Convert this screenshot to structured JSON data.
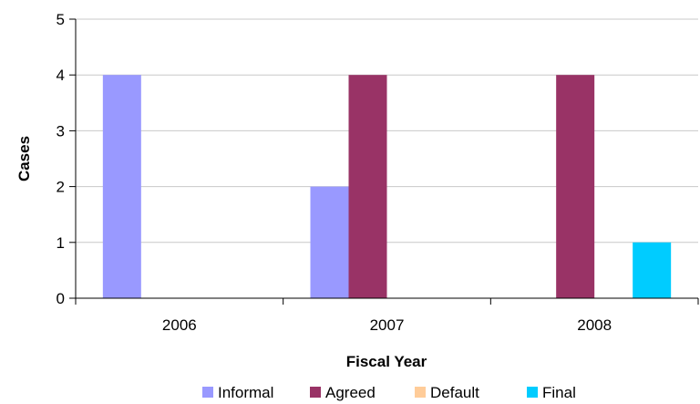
{
  "chart_data": {
    "type": "bar",
    "title": "",
    "xlabel": "Fiscal Year",
    "ylabel": "Cases",
    "categories": [
      "2006",
      "2007",
      "2008"
    ],
    "series": [
      {
        "name": "Informal",
        "color": "#9999ff",
        "values": [
          4,
          2,
          0
        ]
      },
      {
        "name": "Agreed",
        "color": "#993366",
        "values": [
          0,
          4,
          4
        ]
      },
      {
        "name": "Default",
        "color": "#ffcc99",
        "values": [
          0,
          0,
          0
        ]
      },
      {
        "name": "Final",
        "color": "#00ccff",
        "values": [
          0,
          0,
          1
        ]
      }
    ],
    "ylim": [
      0,
      5
    ],
    "yticks": [
      "0",
      "1",
      "2",
      "3",
      "4",
      "5"
    ],
    "grid": true,
    "legend_position": "bottom"
  }
}
